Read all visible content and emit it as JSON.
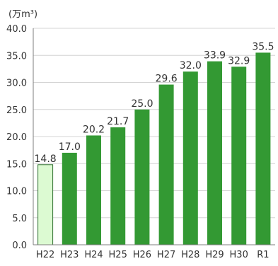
{
  "chart_data": {
    "type": "bar",
    "unit": "(万m³)",
    "categories": [
      "H22",
      "H23",
      "H24",
      "H25",
      "H26",
      "H27",
      "H28",
      "H29",
      "H30",
      "R1"
    ],
    "values": [
      14.8,
      17.0,
      20.2,
      21.7,
      25.0,
      29.6,
      32.0,
      33.9,
      32.9,
      35.5
    ],
    "value_labels": [
      "14.8",
      "17.0",
      "20.2",
      "21.7",
      "25.0",
      "29.6",
      "32.0",
      "33.9",
      "32.9",
      "35.5"
    ],
    "y_ticks": [
      "0.0",
      "5.0",
      "10.0",
      "15.0",
      "20.0",
      "25.0",
      "30.0",
      "35.0",
      "40.0"
    ],
    "ylim": [
      0,
      40
    ],
    "grid": true,
    "legend": "none",
    "colors": {
      "highlight_fill": "#dcfad2",
      "highlight_stroke": "#2f6f2f",
      "bar_fill": "#339933",
      "grid": "#d4d4d4",
      "axis": "#7f7f7f",
      "text": "#333333"
    }
  }
}
